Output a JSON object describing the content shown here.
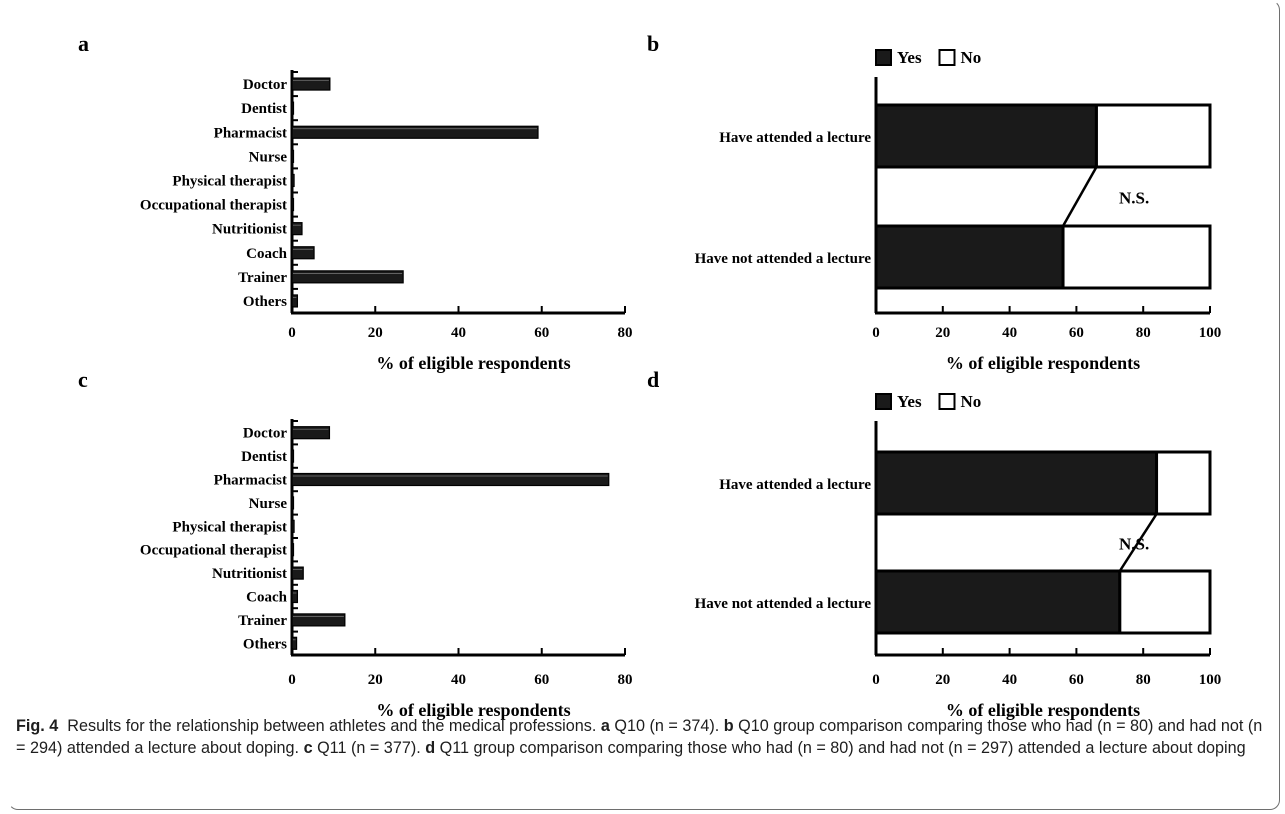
{
  "caption": {
    "fig_label": "Fig. 4",
    "title": "Results for the relationship between athletes and the medical professions.",
    "a_label": "a",
    "a_text": "Q10 (n = 374).",
    "b_label": "b",
    "b_text": "Q10 group comparison comparing those who had (n = 80) and had not (n = 294) attended a lecture about doping.",
    "c_label": "c",
    "c_text": "Q11 (n = 377).",
    "d_label": "d",
    "d_text": "Q11 group comparison comparing those who had (n = 80) and had not (n = 297) attended a lecture about doping"
  },
  "chart_data": [
    {
      "panel": "a",
      "type": "bar",
      "orientation": "horizontal",
      "categories": [
        "Doctor",
        "Dentist",
        "Pharmacist",
        "Nurse",
        "Physical therapist",
        "Occupational therapist",
        "Nutritionist",
        "Coach",
        "Trainer",
        "Others"
      ],
      "values": [
        9.1,
        0.3,
        59.1,
        0.3,
        0.5,
        0.3,
        2.4,
        5.3,
        26.7,
        1.3
      ],
      "xlabel": "% of eligible respondents",
      "xlim": [
        0,
        80
      ],
      "xticks": [
        0,
        20,
        40,
        60,
        80
      ],
      "bar_color": "#1a1a1a"
    },
    {
      "panel": "b",
      "type": "bar",
      "orientation": "horizontal",
      "stacked": true,
      "categories": [
        "Have attended a lecture",
        "Have not attended a lecture"
      ],
      "series": [
        {
          "name": "Yes",
          "values": [
            66,
            56
          ],
          "color": "#1a1a1a"
        },
        {
          "name": "No",
          "values": [
            34,
            44
          ],
          "color": "#ffffff"
        }
      ],
      "annotation": "N.S.",
      "xlabel": "% of eligible respondents",
      "xlim": [
        0,
        100
      ],
      "xticks": [
        0,
        20,
        40,
        60,
        80,
        100
      ],
      "legend": "top-left"
    },
    {
      "panel": "c",
      "type": "bar",
      "orientation": "horizontal",
      "categories": [
        "Doctor",
        "Dentist",
        "Pharmacist",
        "Nurse",
        "Physical therapist",
        "Occupational therapist",
        "Nutritionist",
        "Coach",
        "Trainer",
        "Others"
      ],
      "values": [
        9.0,
        0.3,
        76.1,
        0.3,
        0.5,
        0.3,
        2.7,
        1.3,
        12.7,
        1.1
      ],
      "xlabel": "% of eligible respondents",
      "xlim": [
        0,
        80
      ],
      "xticks": [
        0,
        20,
        40,
        60,
        80
      ],
      "bar_color": "#1a1a1a"
    },
    {
      "panel": "d",
      "type": "bar",
      "orientation": "horizontal",
      "stacked": true,
      "categories": [
        "Have attended a lecture",
        "Have not attended a lecture"
      ],
      "series": [
        {
          "name": "Yes",
          "values": [
            84,
            73
          ],
          "color": "#1a1a1a"
        },
        {
          "name": "No",
          "values": [
            16,
            27
          ],
          "color": "#ffffff"
        }
      ],
      "annotation": "N.S.",
      "xlabel": "% of eligible respondents",
      "xlim": [
        0,
        100
      ],
      "xticks": [
        0,
        20,
        40,
        60,
        80,
        100
      ],
      "legend": "top-left"
    }
  ]
}
